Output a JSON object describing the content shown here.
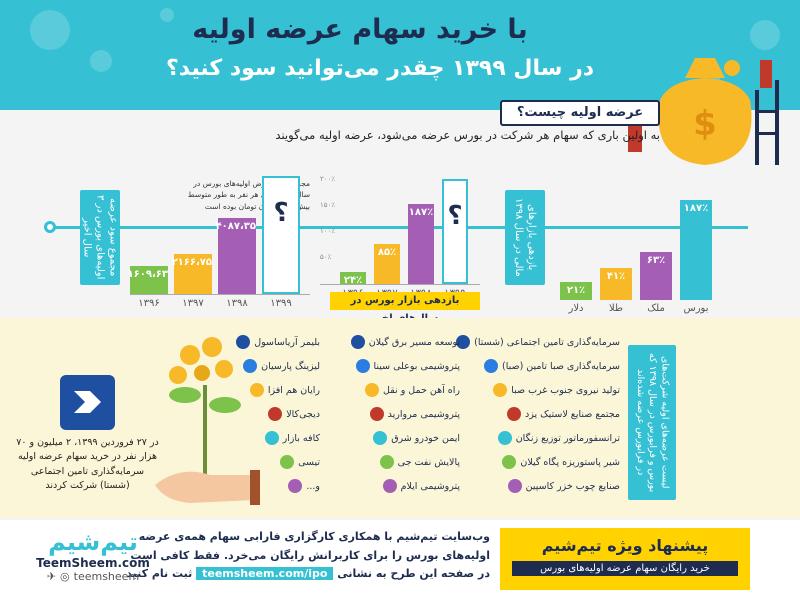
{
  "header": {
    "title": "با خرید سهام عرضه اولیه",
    "subtitle": "در سال ۱۳۹۹ چقدر می‌توانید سود کنید؟"
  },
  "question": {
    "heading": "عرضه اولیه چیست؟",
    "answer": "به اولین باری که سهام هر شرکت در بورس عرضه می‌شود، عرضه اولیه می‌گویند"
  },
  "chart_profit": {
    "side_label": "مجموع سود عرضه اولیه‌های بورس در ۳ سال اخیر",
    "note": "مجموع سود عرض اولیه‌های بورس در سال ۱۳۹۸ برای هر نفر به طور متوسط بیش از ۴ میلیون تومان بوده است",
    "bars": [
      {
        "year": "۱۳۹۶",
        "value": "۱۶۰۹،۶۳",
        "color": "#7dc24b"
      },
      {
        "year": "۱۳۹۷",
        "value": "۲۱۶۶،۷۵",
        "color": "#f7b928"
      },
      {
        "year": "۱۳۹۸",
        "value": "۴۰۸۷،۳۵",
        "color": "#a45fb5"
      },
      {
        "year": "۱۳۹۹",
        "value": "؟",
        "color": "#35c0d4"
      }
    ],
    "future_label": "فروردین"
  },
  "chart_return": {
    "label": "بازدهی بازار بورس در سال‌های اخیر",
    "yticks": [
      "۲۰۰٪",
      "۱۵۰٪",
      "۱۰۰٪",
      "۵۰٪"
    ],
    "bars": [
      {
        "year": "۱۳۹۶",
        "value": "۲۴٪",
        "color": "#7dc24b"
      },
      {
        "year": "۱۳۹۷",
        "value": "۸۵٪",
        "color": "#f7b928"
      },
      {
        "year": "۱۳۹۸",
        "value": "۱۸۷٪",
        "color": "#a45fb5"
      },
      {
        "year": "۱۳۹۹",
        "value": "؟",
        "color": "#35c0d4"
      }
    ]
  },
  "chart_markets": {
    "side_label": "بازدهی بازارهای مالی در سال ۱۳۹۸",
    "bars": [
      {
        "name": "دلار",
        "value": "۲۱٪",
        "color": "#7dc24b"
      },
      {
        "name": "طلا",
        "value": "۴۱٪",
        "color": "#f7b928"
      },
      {
        "name": "ملک",
        "value": "۶۳٪",
        "color": "#a45fb5"
      },
      {
        "name": "بورس",
        "value": "۱۸۷٪",
        "color": "#35c0d4"
      }
    ]
  },
  "companies": {
    "side_label": "لیست عرضه‌های اولیه شرکت‌های بورس و فرابورس در سال ۱۳۹۸ که در فرابورس عرضه شده‌اند",
    "col1": [
      "سرمایه‌گذاری تامین اجتماعی (شستا)",
      "سرمایه‌گذاری صبا تامین (صبا)",
      "تولید نیروی جنوب غرب صبا",
      "مجتمع صنایع لاستیک یزد",
      "ترانسفورماتور توزیع زنگان",
      "شیر پاستوریزه پگاه گیلان",
      "صنایع چوب خزر کاسپین"
    ],
    "col2": [
      "توسعه مسیر برق گیلان",
      "پتروشیمی بوعلی سینا",
      "راه آهن حمل و نقل",
      "پتروشیمی مروارید",
      "ایمن خودرو شرق",
      "پالایش نفت جی",
      "پتروشیمی ایلام"
    ],
    "col3": [
      "بلیمر آریاساسول",
      "لیزینگ پارسیان",
      "رایان هم افزا",
      "دیجی‌کالا",
      "کافه بازار",
      "تیسی",
      "و..."
    ]
  },
  "shasta_note": "در ۲۷ فروردین ۱۳۹۹، ۲ میلیون و ۷۰ هزار نفر در خرید سهام عرضه اولیه سرمایه‌گذاری تامین اجتماعی (شستا) شرکت کردند",
  "offer": {
    "title": "پیشنهاد ویژه تیم‌شیم",
    "subtitle": "خرید رایگان سهام عرضه اولیه‌های بورس"
  },
  "footer": {
    "text": "وب‌سایت تیم‌شیم با همکاری کارگزاری فارابی سهام همه‌ی عرضه اولیه‌های بورس را برای کاربرانش رایگان می‌خرد. فقط کافی است در صفحه این طرح به نشانی",
    "url": "teemsheem.com/ipo",
    "tail": "ثبت نام کنید"
  },
  "brand": {
    "logo_text": "تیم‌شیم",
    "site": "TeemSheem.com",
    "handle": "teemsheem"
  }
}
